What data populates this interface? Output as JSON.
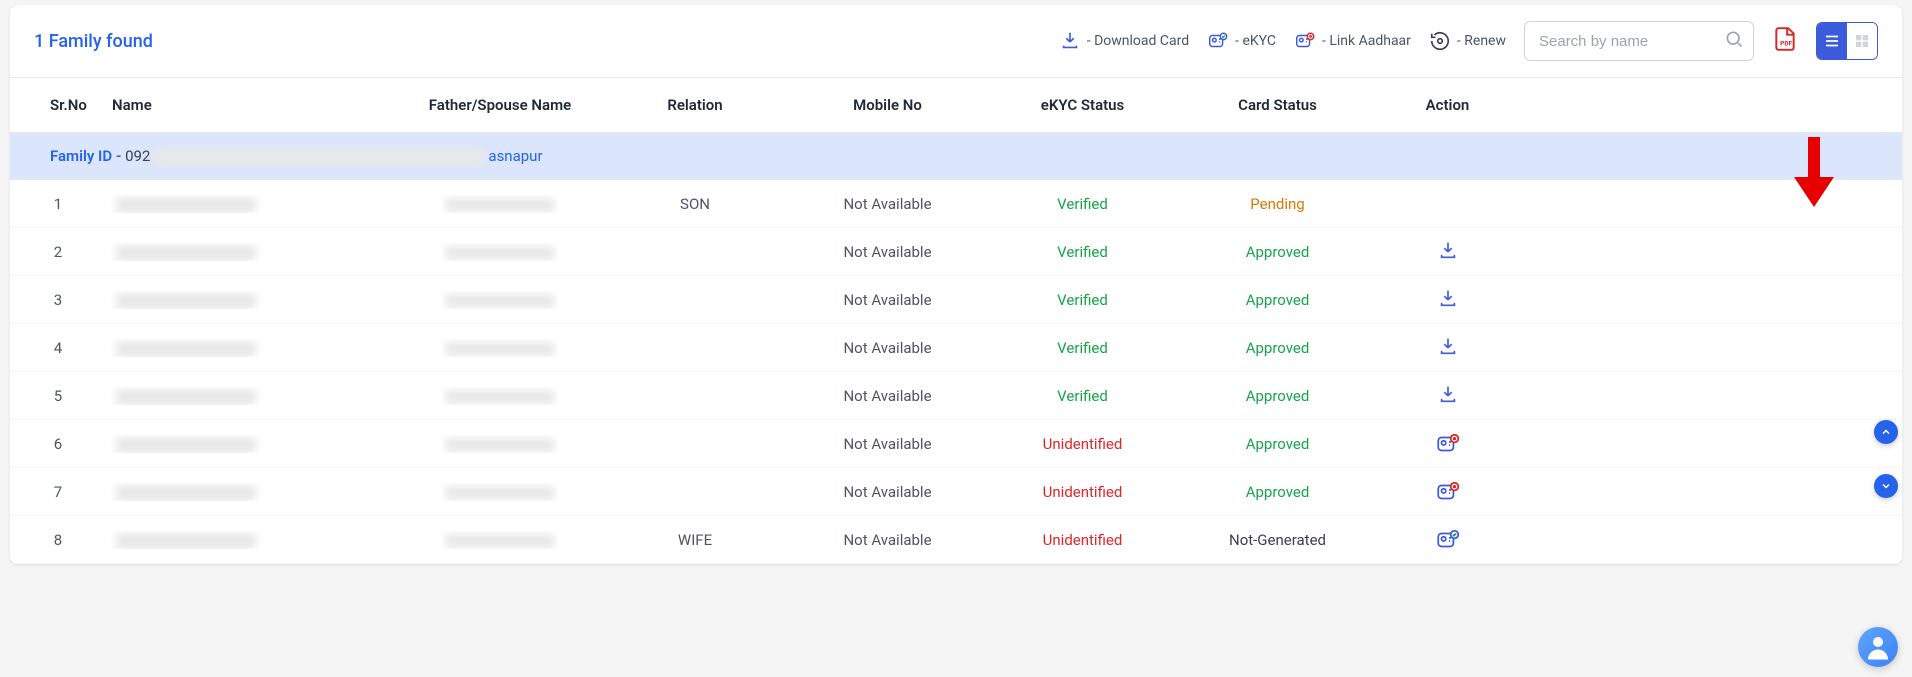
{
  "header": {
    "family_found": "1 Family found",
    "download_card_label": "- Download Card",
    "ekyc_label": "- eKYC",
    "link_aadhaar_label": "- Link Aadhaar",
    "renew_label": "- Renew",
    "search_placeholder": "Search by name"
  },
  "columns": {
    "sr": "Sr.No",
    "name": "Name",
    "father_spouse": "Father/Spouse Name",
    "relation": "Relation",
    "mobile": "Mobile No",
    "ekyc_status": "eKYC Status",
    "card_status": "Card Status",
    "action": "Action"
  },
  "family_id": {
    "label": "Family ID - ",
    "prefix": "092",
    "suffix": "asnapur"
  },
  "status_colors": {
    "verified": "#16a34a",
    "unidentified": "#dc2626",
    "pending": "#d97706",
    "approved": "#16a34a",
    "not_generated": "#374151"
  },
  "colors": {
    "primary_blue": "#2563eb",
    "link_blue": "#3b5bdb",
    "family_row_bg": "#dbe5fb",
    "red_arrow": "#e60000"
  },
  "rows": [
    {
      "sr": "1",
      "name": "",
      "relation": "SON",
      "mobile": "Not Available",
      "ekyc": "Verified",
      "ekyc_color": "status-verified",
      "card": "Pending",
      "card_color": "status-pending",
      "action": "none"
    },
    {
      "sr": "2",
      "name": "",
      "relation": "",
      "mobile": "Not Available",
      "ekyc": "Verified",
      "ekyc_color": "status-verified",
      "card": "Approved",
      "card_color": "status-approved",
      "action": "download"
    },
    {
      "sr": "3",
      "name": "",
      "relation": "",
      "mobile": "Not Available",
      "ekyc": "Verified",
      "ekyc_color": "status-verified",
      "card": "Approved",
      "card_color": "status-approved",
      "action": "download"
    },
    {
      "sr": "4",
      "name": "",
      "relation": "",
      "mobile": "Not Available",
      "ekyc": "Verified",
      "ekyc_color": "status-verified",
      "card": "Approved",
      "card_color": "status-approved",
      "action": "download"
    },
    {
      "sr": "5",
      "name": "",
      "relation": "",
      "mobile": "Not Available",
      "ekyc": "Verified",
      "ekyc_color": "status-verified",
      "card": "Approved",
      "card_color": "status-approved",
      "action": "download"
    },
    {
      "sr": "6",
      "name": "",
      "relation": "",
      "mobile": "Not Available",
      "ekyc": "Unidentified",
      "ekyc_color": "status-unidentified",
      "card": "Approved",
      "card_color": "status-approved",
      "action": "ekyc"
    },
    {
      "sr": "7",
      "name": "",
      "relation": "",
      "mobile": "Not Available",
      "ekyc": "Unidentified",
      "ekyc_color": "status-unidentified",
      "card": "Approved",
      "card_color": "status-approved",
      "action": "ekyc"
    },
    {
      "sr": "8",
      "name": "",
      "relation": "WIFE",
      "mobile": "Not Available",
      "ekyc": "Unidentified",
      "ekyc_color": "status-unidentified",
      "card": "Not-Generated",
      "card_color": "status-notgen",
      "action": "ekyc-check"
    }
  ]
}
